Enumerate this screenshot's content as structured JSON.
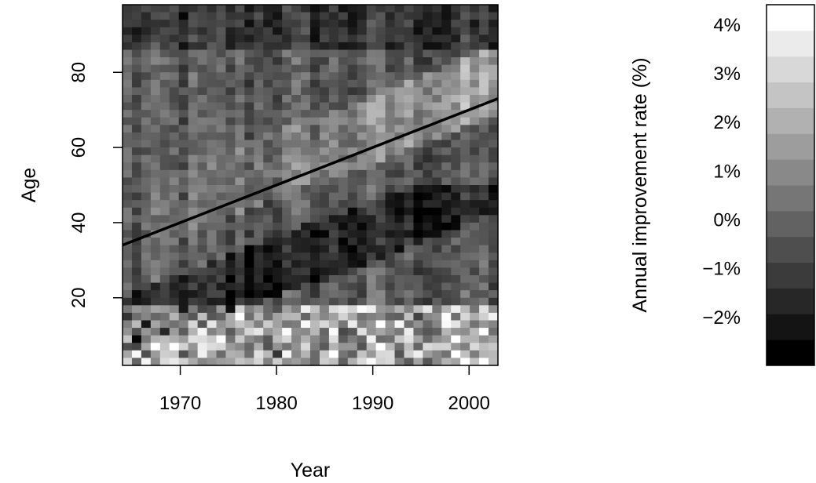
{
  "chart_data": {
    "type": "heatmap",
    "xlabel": "Year",
    "ylabel": "Age",
    "x_range": [
      1964,
      2003
    ],
    "y_range": [
      2,
      98
    ],
    "x_ticks": [
      1970,
      1980,
      1990,
      2000
    ],
    "y_ticks": [
      20,
      40,
      60,
      80
    ],
    "x_tick_labels": [
      "1970",
      "1980",
      "1990",
      "2000"
    ],
    "y_tick_labels": [
      "20",
      "40",
      "60",
      "80"
    ],
    "grid": false,
    "trend_line": {
      "x": [
        1964,
        2003
      ],
      "y": [
        34,
        73
      ]
    },
    "colorbar": {
      "label": "Annual improvement rate (%)",
      "range": [
        -3,
        4.4
      ],
      "ticks": [
        -2,
        -1,
        0,
        1,
        2,
        3,
        4
      ],
      "tick_labels": [
        "−2%",
        "−1%",
        "0%",
        "1%",
        "2%",
        "3%",
        "4%"
      ],
      "color_low": "#000000",
      "color_high": "#ffffff",
      "steps": 14
    }
  }
}
